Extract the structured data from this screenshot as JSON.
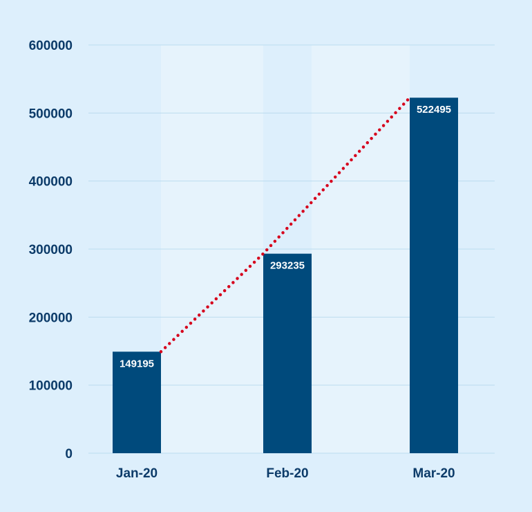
{
  "chart_data": {
    "type": "bar",
    "categories": [
      "Jan-20",
      "Feb-20",
      "Mar-20"
    ],
    "values": [
      149195,
      293235,
      522495
    ],
    "data_labels": [
      "149195",
      "293235",
      "522495"
    ],
    "ylim": [
      0,
      600000
    ],
    "yticks": [
      "0",
      "100000",
      "200000",
      "300000",
      "400000",
      "500000",
      "600000"
    ],
    "title": "",
    "xlabel": "",
    "ylabel": "",
    "grid": true,
    "trend_line": {
      "style": "dotted",
      "connects": "bar tops"
    },
    "colors": {
      "background": "#ddeffc",
      "bar": "#004a7c",
      "trend": "#d6001c",
      "grid": "#bcdcef",
      "text": "#0c3b69",
      "band": "#e6f3fc"
    }
  }
}
